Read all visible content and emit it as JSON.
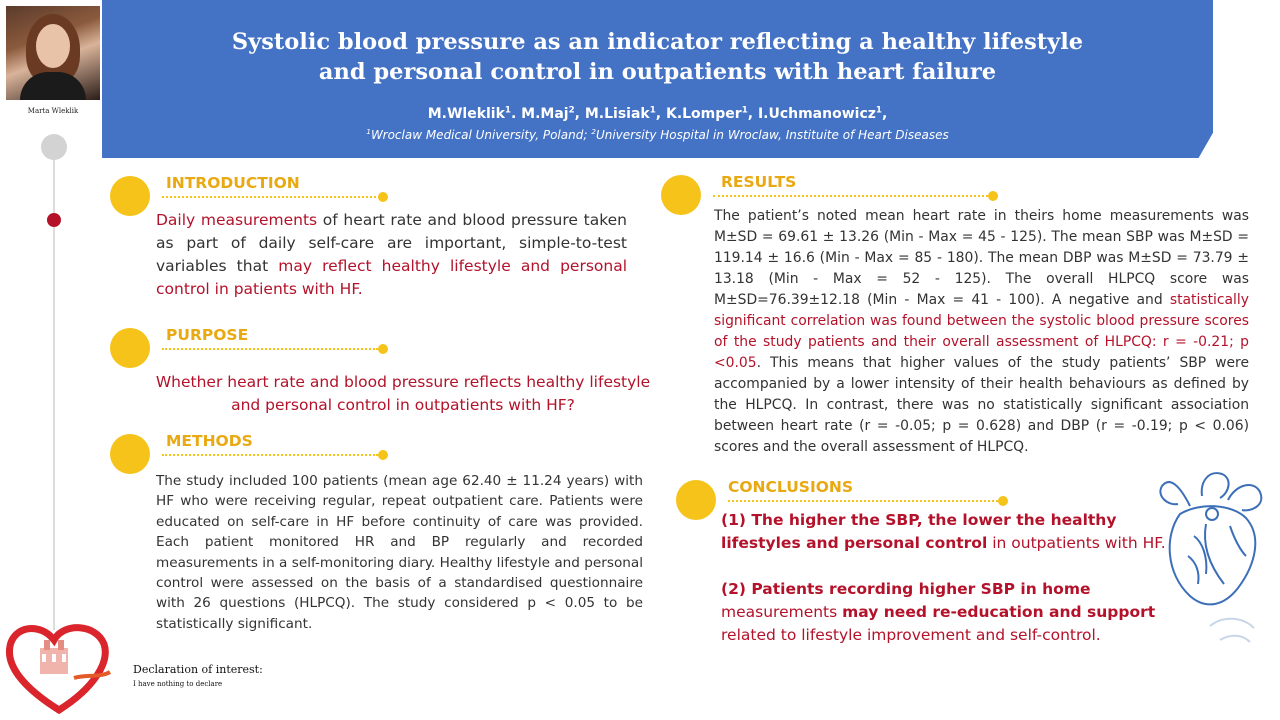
{
  "header": {
    "title_line1": "Systolic blood pressure as an indicator reflecting a healthy lifestyle",
    "title_line2": "and personal control in outpatients with heart failure",
    "authors": [
      {
        "name": "M.Wleklik",
        "sup": "1",
        "sep": ". "
      },
      {
        "name": "M.Maj",
        "sup": "2",
        "sep": ", "
      },
      {
        "name": "M.Lisiak",
        "sup": "1",
        "sep": ", "
      },
      {
        "name": "K.Lomper",
        "sup": "1",
        "sep": ", "
      },
      {
        "name": "I.Uchmanowicz",
        "sup": "1",
        "sep": ","
      }
    ],
    "affil_sup1": "1",
    "affil1": "Wroclaw Medical University, Poland; ",
    "affil_sup2": "2",
    "affil2": "University Hospital in Wroclaw, Instituite of Heart Diseases"
  },
  "presenter": {
    "name": "Marta Wleklik"
  },
  "colors": {
    "banner": "#4472c4",
    "accent_yellow": "#f5c31a",
    "heading_yellow": "#e8a912",
    "highlight_red": "#b3122a"
  },
  "sections": {
    "introduction": {
      "heading": "INTRODUCTION",
      "red1": "Daily measurements",
      "text1": " of heart rate and blood pressure taken as part of daily self-care are important, simple-to-test variables that ",
      "red2": "may reflect healthy lifestyle and personal control in patients with HF."
    },
    "purpose": {
      "heading": "PURPOSE",
      "text": "Whether heart rate and blood pressure reflects healthy lifestyle and personal control  in outpatients with HF?"
    },
    "methods": {
      "heading": "METHODS",
      "text": "The study included 100 patients (mean age 62.40 ± 11.24 years) with HF who were receiving regular, repeat outpatient care. Patients were educated on self-care in HF before continuity of care was provided. Each patient monitored HR and BP regularly and recorded measurements in a self-monitoring diary. Healthy lifestyle and personal control were assessed on the basis of a standardised questionnaire with 26 questions (HLPCQ). The study considered p < 0.05 to be statistically significant."
    },
    "results": {
      "heading": "RESULTS",
      "text1": "The patient’s noted mean heart rate in theirs home measurements was M±SD = 69.61 ± 13.26 (Min - Max = 45 - 125). The mean SBP was M±SD = 119.14 ± 16.6 (Min - Max = 85 - 180). The mean DBP was M±SD = 73.79 ± 13.18 (Min - Max = 52 - 125). The overall HLPCQ score was M±SD=76.39±12.18 (Min - Max = 41 - 100). A negative and ",
      "red": "statistically significant correlation was found between the systolic blood pressure scores of the study patients and their overall assessment of HLPCQ: r = -0.21; p <0.05",
      "text2": ". This means that higher values of the study patients’ SBP were accompanied by a lower intensity of their health behaviours as defined by the HLPCQ. In contrast, there was no statistically significant association between heart rate (r = -0.05; p = 0.628) and DBP (r = -0.19; p < 0.06) scores and the overall assessment of HLPCQ."
    },
    "conclusions": {
      "heading": "CONCLUSIONS",
      "c1_bold": "(1) The higher the SBP, the lower the healthy lifestyles and personal control",
      "c1_rest": " in outpatients with HF.",
      "c2_bold1": "(2) Patients recording higher SBP in home",
      "c2_mid": " measurements ",
      "c2_bold2": "may need re-education and support",
      "c2_rest": " related to lifestyle improvement and self-control."
    }
  },
  "declaration": {
    "heading": "Declaration of interest:",
    "text": "I have nothing to declare"
  }
}
